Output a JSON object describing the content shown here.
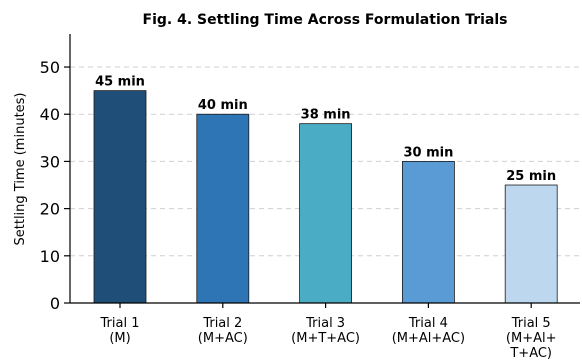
{
  "chart_data": {
    "type": "bar",
    "title": "Fig. 4. Settling Time Across Formulation Trials",
    "xlabel": "",
    "ylabel": "Settling Time (minutes)",
    "ylim": [
      0,
      57
    ],
    "yticks": [
      0,
      10,
      20,
      30,
      40,
      50
    ],
    "grid": "y-dashed",
    "categories": [
      [
        "Trial 1",
        "(M)"
      ],
      [
        "Trial 2",
        "(M+AC)"
      ],
      [
        "Trial 3",
        "(M+T+AC)"
      ],
      [
        "Trial 4",
        "(M+Al+AC)"
      ],
      [
        "Trial 5",
        "(M+Al+",
        "T+AC)"
      ]
    ],
    "values": [
      45,
      40,
      38,
      30,
      25
    ],
    "data_labels": [
      "45 min",
      "40 min",
      "38 min",
      "30 min",
      "25 min"
    ],
    "colors": [
      "#1f4e79",
      "#2e75b6",
      "#4bacc6",
      "#5b9bd5",
      "#bdd7ee"
    ]
  }
}
